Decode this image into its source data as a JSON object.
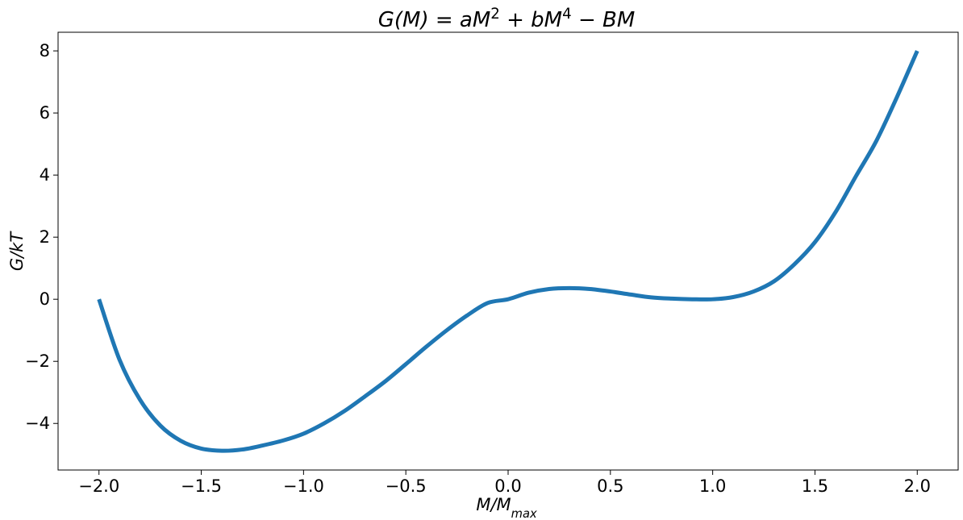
{
  "chart_data": {
    "type": "line",
    "title": {
      "parts": [
        {
          "text": "G(M) = aM"
        },
        {
          "text": "2",
          "sup": true
        },
        {
          "text": " + bM"
        },
        {
          "text": "4",
          "sup": true
        },
        {
          "text": " − BM"
        }
      ]
    },
    "xlabel": {
      "parts": [
        {
          "text": "M/M"
        },
        {
          "text": "max",
          "sub": true
        }
      ]
    },
    "ylabel": {
      "parts": [
        {
          "text": "G/kT"
        }
      ]
    },
    "xlim": [
      -2.2,
      2.2
    ],
    "ylim": [
      -5.5,
      8.6
    ],
    "xticks": [
      -2.0,
      -1.5,
      -1.0,
      -0.5,
      0.0,
      0.5,
      1.0,
      1.5,
      2.0
    ],
    "xtick_labels": [
      "−2.0",
      "−1.5",
      "−1.0",
      "−0.5",
      "0.0",
      "0.5",
      "1.0",
      "1.5",
      "2.0"
    ],
    "yticks": [
      -4,
      -2,
      0,
      2,
      4,
      6,
      8
    ],
    "ytick_labels": [
      "−4",
      "−2",
      "0",
      "2",
      "4",
      "6",
      "8"
    ],
    "grid": false,
    "series": [
      {
        "color": "#1f77b4",
        "x": [
          -2.0,
          -1.9,
          -1.8,
          -1.7,
          -1.6,
          -1.5,
          -1.4,
          -1.3,
          -1.2,
          -1.1,
          -1.0,
          -0.9,
          -0.8,
          -0.7,
          -0.6,
          -0.5,
          -0.4,
          -0.3,
          -0.2,
          -0.1,
          0.0,
          0.1,
          0.2,
          0.3,
          0.4,
          0.5,
          0.6,
          0.7,
          0.8,
          0.9,
          1.0,
          1.1,
          1.2,
          1.3,
          1.4,
          1.5,
          1.6,
          1.7,
          1.8,
          1.9,
          2.0
        ],
        "y": [
          0.0,
          -1.94,
          -3.23,
          -4.07,
          -4.56,
          -4.81,
          -4.88,
          -4.84,
          -4.71,
          -4.55,
          -4.33,
          -4.0,
          -3.6,
          -3.13,
          -2.64,
          -2.09,
          -1.53,
          -1.0,
          -0.52,
          -0.12,
          0.0,
          0.21,
          0.33,
          0.36,
          0.33,
          0.25,
          0.15,
          0.06,
          0.02,
          0.0,
          0.0,
          0.07,
          0.25,
          0.58,
          1.13,
          1.84,
          2.8,
          3.96,
          5.1,
          6.5,
          8.0
        ]
      }
    ]
  }
}
